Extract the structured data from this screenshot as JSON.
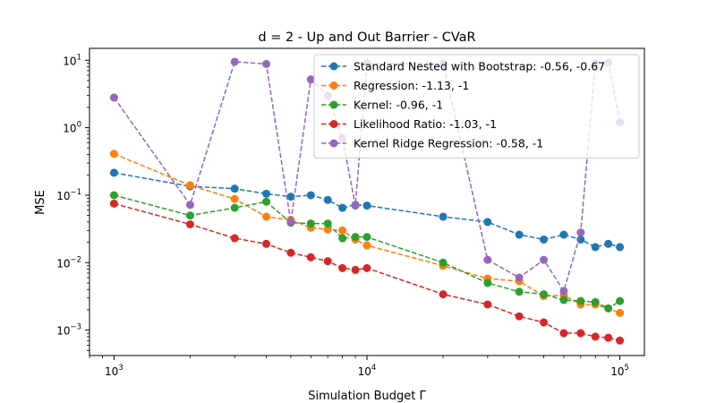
{
  "chart_data": {
    "type": "line",
    "title": "d = 2 - Up and Out Barrier - CVaR",
    "xlabel": "Simulation Budget Γ",
    "ylabel": "MSE",
    "xscale": "log",
    "yscale": "log",
    "xlim": [
      800,
      125000
    ],
    "ylim": [
      0.00042,
      15
    ],
    "xticks": [
      {
        "value": 1000,
        "base": "10",
        "exp": "3"
      },
      {
        "value": 10000,
        "base": "10",
        "exp": "4"
      },
      {
        "value": 100000,
        "base": "10",
        "exp": "5"
      }
    ],
    "yticks": [
      {
        "value": 0.001,
        "base": "10",
        "exp": "−3"
      },
      {
        "value": 0.01,
        "base": "10",
        "exp": "−2"
      },
      {
        "value": 0.1,
        "base": "10",
        "exp": "−1"
      },
      {
        "value": 1,
        "base": "10",
        "exp": "0"
      },
      {
        "value": 10,
        "base": "10",
        "exp": "1"
      }
    ],
    "grid": false,
    "legend_position": "top-right",
    "x": [
      1000,
      2000,
      3000,
      4000,
      5000,
      6000,
      7000,
      8000,
      9000,
      10000,
      20000,
      30000,
      40000,
      50000,
      60000,
      70000,
      80000,
      90000,
      100000
    ],
    "series": [
      {
        "name": "Standard Nested with Bootstrap: -0.56, -0.67",
        "color": "#1f77b4",
        "values": [
          0.215,
          0.135,
          0.125,
          0.105,
          0.095,
          0.1,
          0.085,
          0.065,
          0.072,
          0.07,
          0.048,
          0.04,
          0.026,
          0.022,
          0.026,
          0.022,
          0.017,
          0.019,
          0.017
        ]
      },
      {
        "name": "Regression: -1.13, -1",
        "color": "#ff7f0e",
        "values": [
          0.41,
          0.14,
          0.088,
          0.048,
          0.043,
          0.033,
          0.031,
          0.03,
          0.022,
          0.018,
          0.009,
          0.0058,
          0.0053,
          0.0032,
          0.0033,
          0.0024,
          0.0024,
          0.0021,
          0.0018
        ]
      },
      {
        "name": "Kernel: -0.96, -1",
        "color": "#2ca02c",
        "values": [
          0.1,
          0.05,
          0.065,
          0.08,
          0.039,
          0.038,
          0.038,
          0.023,
          0.024,
          0.024,
          0.01,
          0.005,
          0.0037,
          0.0034,
          0.0028,
          0.0027,
          0.0026,
          0.0021,
          0.0027
        ]
      },
      {
        "name": "Likelihood Ratio: -1.03, -1",
        "color": "#d62728",
        "values": [
          0.075,
          0.037,
          0.023,
          0.019,
          0.014,
          0.012,
          0.0105,
          0.0083,
          0.0078,
          0.0083,
          0.0034,
          0.0024,
          0.0016,
          0.0013,
          0.0009,
          0.0009,
          0.0008,
          0.00077,
          0.0007
        ]
      },
      {
        "name": "Kernel Ridge Regression: -0.58, -1",
        "color": "#9467bd",
        "values": [
          2.8,
          0.072,
          9.5,
          8.8,
          0.04,
          5.2,
          3.0,
          0.7,
          0.07,
          9.0,
          9.0,
          0.011,
          0.006,
          0.011,
          0.0038,
          0.028,
          9.0,
          9.2,
          1.2
        ]
      }
    ]
  }
}
